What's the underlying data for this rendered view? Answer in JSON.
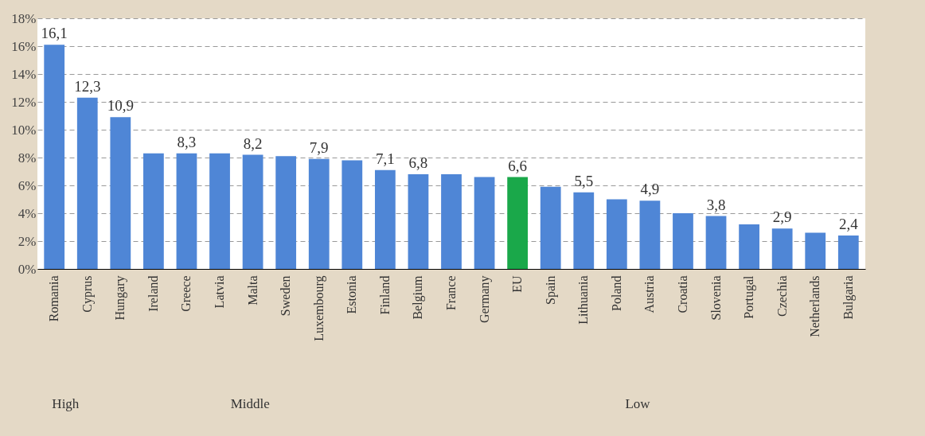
{
  "chart_data": {
    "type": "bar",
    "categories": [
      "Romania",
      "Cyprus",
      "Hungary",
      "Ireland",
      "Greece",
      "Latvia",
      "Malta",
      "Sweden",
      "Luxembourg",
      "Estonia",
      "Finland",
      "Belgium",
      "France",
      "Germany",
      "EU",
      "Spain",
      "Lithuania",
      "Poland",
      "Austria",
      "Croatia",
      "Slovenia",
      "Portugal",
      "Czechia",
      "Netherlands",
      "Bulgaria"
    ],
    "values": [
      16.1,
      12.3,
      10.9,
      8.3,
      8.3,
      8.3,
      8.2,
      8.1,
      7.9,
      7.8,
      7.1,
      6.8,
      6.8,
      6.6,
      6.6,
      5.9,
      5.5,
      5.0,
      4.9,
      4.0,
      3.8,
      3.2,
      2.9,
      2.6,
      2.4
    ],
    "value_labels": [
      "16,1",
      "12,3",
      "10,9",
      null,
      "8,3",
      null,
      "8,2",
      null,
      "7,9",
      null,
      "7,1",
      "6,8",
      null,
      null,
      "6,6",
      null,
      "5,5",
      null,
      "4,9",
      null,
      "3,8",
      null,
      "2,9",
      null,
      "2,4"
    ],
    "colors": [
      "#4f86d6",
      "#4f86d6",
      "#4f86d6",
      "#4f86d6",
      "#4f86d6",
      "#4f86d6",
      "#4f86d6",
      "#4f86d6",
      "#4f86d6",
      "#4f86d6",
      "#4f86d6",
      "#4f86d6",
      "#4f86d6",
      "#4f86d6",
      "#1aa84a",
      "#4f86d6",
      "#4f86d6",
      "#4f86d6",
      "#4f86d6",
      "#4f86d6",
      "#4f86d6",
      "#4f86d6",
      "#4f86d6",
      "#4f86d6",
      "#4f86d6"
    ],
    "ylim": [
      0,
      18
    ],
    "yticks": [
      {
        "value": 0,
        "label": "0%"
      },
      {
        "value": 2,
        "label": "2%"
      },
      {
        "value": 4,
        "label": "4%"
      },
      {
        "value": 6,
        "label": "6%"
      },
      {
        "value": 8,
        "label": "8%"
      },
      {
        "value": 10,
        "label": "10%"
      },
      {
        "value": 12,
        "label": "12%"
      },
      {
        "value": 14,
        "label": "14%"
      },
      {
        "value": 16,
        "label": "16%"
      },
      {
        "value": 18,
        "label": "18%"
      }
    ],
    "grid": "y",
    "annotations": [
      "High",
      "Middle",
      "Low"
    ]
  }
}
